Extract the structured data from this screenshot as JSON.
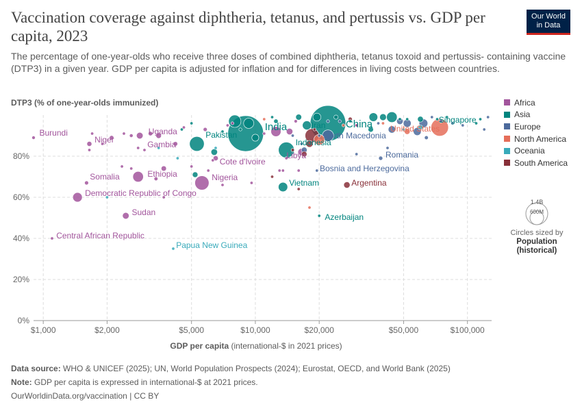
{
  "header": {
    "title": "Vaccination coverage against diphtheria, tetanus, and pertussis vs. GDP per capita, 2023",
    "subtitle": "The percentage of one-year-olds who receive three doses of combined diphtheria, tetanus toxoid and pertussis- containing vaccine (DTP3) in a given year. GDP per capita is adjusted for inflation and for differences in living costs between countries.",
    "logo_line1": "Our World",
    "logo_line2": "in Data"
  },
  "chart_data": {
    "type": "scatter",
    "ylabel": "DTP3 (% of one-year-olds immunized)",
    "xlabel_bold": "GDP per capita",
    "xlabel_rest": " (international-$ in 2021 prices)",
    "x_scale": "log",
    "xlim": [
      900,
      130000
    ],
    "ylim": [
      0,
      100
    ],
    "x_ticks": [
      {
        "v": 1000,
        "label": "$1,000"
      },
      {
        "v": 2000,
        "label": "$2,000"
      },
      {
        "v": 5000,
        "label": "$5,000"
      },
      {
        "v": 10000,
        "label": "$10,000"
      },
      {
        "v": 20000,
        "label": "$20,000"
      },
      {
        "v": 50000,
        "label": "$50,000"
      },
      {
        "v": 100000,
        "label": "$100,000"
      }
    ],
    "y_ticks": [
      {
        "v": 0,
        "label": "0%"
      },
      {
        "v": 20,
        "label": "20%"
      },
      {
        "v": 40,
        "label": "40%"
      },
      {
        "v": 60,
        "label": "60%"
      },
      {
        "v": 80,
        "label": "80%"
      }
    ],
    "grid": true,
    "legend_position": "right",
    "colors": {
      "Africa": "#a2559c",
      "Asia": "#00847e",
      "Europe": "#4c6a9c",
      "North America": "#e56e5a",
      "Oceania": "#38aaba",
      "South America": "#883039"
    },
    "legend": [
      "Africa",
      "Asia",
      "Europe",
      "North America",
      "Oceania",
      "South America"
    ],
    "size_legend": {
      "max_label": "1.4B",
      "mid_label": "600M",
      "note": "Circles sized by",
      "note_bold": "Population (historical)"
    },
    "labeled_points": [
      {
        "name": "Burundi",
        "region": "Africa",
        "x": 900,
        "y": 89,
        "pop": 13
      },
      {
        "name": "Niger",
        "region": "Africa",
        "x": 1650,
        "y": 86,
        "pop": 27
      },
      {
        "name": "Uganda",
        "region": "Africa",
        "x": 2850,
        "y": 90,
        "pop": 48
      },
      {
        "name": "Gambia",
        "region": "Africa",
        "x": 3000,
        "y": 83,
        "pop": 2.7
      },
      {
        "name": "Ethiopia",
        "region": "Africa",
        "x": 2800,
        "y": 70,
        "pop": 126
      },
      {
        "name": "Somalia",
        "region": "Africa",
        "x": 1600,
        "y": 67,
        "pop": 18
      },
      {
        "name": "Democratic Republic of Congo",
        "region": "Africa",
        "x": 1450,
        "y": 60,
        "pop": 102
      },
      {
        "name": "Sudan",
        "region": "Africa",
        "x": 2450,
        "y": 51,
        "pop": 48
      },
      {
        "name": "Central African Republic",
        "region": "Africa",
        "x": 1100,
        "y": 40,
        "pop": 5.7
      },
      {
        "name": "Nigeria",
        "region": "Africa",
        "x": 5600,
        "y": 67,
        "pop": 223
      },
      {
        "name": "Cote d'Ivoire",
        "region": "Africa",
        "x": 6500,
        "y": 79,
        "pop": 29
      },
      {
        "name": "Libya",
        "region": "Africa",
        "x": 14000,
        "y": 79,
        "pop": 7
      },
      {
        "name": "Pakistan",
        "region": "Asia",
        "x": 5300,
        "y": 86,
        "pop": 240
      },
      {
        "name": "India",
        "region": "Asia",
        "x": 9000,
        "y": 91,
        "pop": 1428
      },
      {
        "name": "Indonesia",
        "region": "Asia",
        "x": 14000,
        "y": 83,
        "pop": 278
      },
      {
        "name": "Iran",
        "region": "Asia",
        "x": 17500,
        "y": 95,
        "pop": 89
      },
      {
        "name": "China",
        "region": "Asia",
        "x": 22000,
        "y": 96,
        "pop": 1422
      },
      {
        "name": "Vietnam",
        "region": "Asia",
        "x": 13500,
        "y": 65,
        "pop": 99
      },
      {
        "name": "Azerbaijan",
        "region": "Asia",
        "x": 20000,
        "y": 51,
        "pop": 10
      },
      {
        "name": "Singapore",
        "region": "Asia",
        "x": 110000,
        "y": 96,
        "pop": 5.9
      },
      {
        "name": "North Macedonia",
        "region": "Europe",
        "x": 20000,
        "y": 90,
        "pop": 1.8
      },
      {
        "name": "Romania",
        "region": "Europe",
        "x": 39000,
        "y": 79,
        "pop": 19
      },
      {
        "name": "Bosnia and Herzegovina",
        "region": "Europe",
        "x": 19500,
        "y": 73,
        "pop": 3.2
      },
      {
        "name": "United States",
        "region": "North America",
        "x": 74000,
        "y": 94,
        "pop": 340
      },
      {
        "name": "Papua New Guinea",
        "region": "Oceania",
        "x": 4100,
        "y": 35,
        "pop": 10
      },
      {
        "name": "Argentina",
        "region": "South America",
        "x": 27000,
        "y": 66,
        "pop": 45
      }
    ],
    "unlabeled_points": [
      {
        "region": "Africa",
        "x": 1700,
        "y": 91,
        "pop": 5
      },
      {
        "region": "Africa",
        "x": 1650,
        "y": 83,
        "pop": 9
      },
      {
        "region": "Africa",
        "x": 2100,
        "y": 89,
        "pop": 22
      },
      {
        "region": "Africa",
        "x": 2400,
        "y": 91,
        "pop": 10
      },
      {
        "region": "Africa",
        "x": 2600,
        "y": 90,
        "pop": 14
      },
      {
        "region": "Africa",
        "x": 3200,
        "y": 91,
        "pop": 21
      },
      {
        "region": "Africa",
        "x": 3500,
        "y": 90,
        "pop": 34
      },
      {
        "region": "Africa",
        "x": 4200,
        "y": 86,
        "pop": 23
      },
      {
        "region": "Africa",
        "x": 2350,
        "y": 75,
        "pop": 9
      },
      {
        "region": "Africa",
        "x": 2600,
        "y": 74,
        "pop": 8
      },
      {
        "region": "Africa",
        "x": 3700,
        "y": 74,
        "pop": 30
      },
      {
        "region": "Africa",
        "x": 3400,
        "y": 69,
        "pop": 17
      },
      {
        "region": "Africa",
        "x": 1900,
        "y": 86,
        "pop": 3
      },
      {
        "region": "Africa",
        "x": 2800,
        "y": 84,
        "pop": 4
      },
      {
        "region": "Africa",
        "x": 5000,
        "y": 75,
        "pop": 8
      },
      {
        "region": "Africa",
        "x": 6000,
        "y": 73,
        "pop": 3
      },
      {
        "region": "Africa",
        "x": 6300,
        "y": 78,
        "pop": 6
      },
      {
        "region": "Africa",
        "x": 7000,
        "y": 66,
        "pop": 5
      },
      {
        "region": "Africa",
        "x": 9600,
        "y": 67,
        "pop": 2
      },
      {
        "region": "Africa",
        "x": 7800,
        "y": 96,
        "pop": 2
      },
      {
        "region": "Africa",
        "x": 5800,
        "y": 93,
        "pop": 18
      },
      {
        "region": "Africa",
        "x": 7400,
        "y": 95,
        "pop": 3
      },
      {
        "region": "Africa",
        "x": 4600,
        "y": 94,
        "pop": 1.5
      },
      {
        "region": "Africa",
        "x": 3700,
        "y": 60,
        "pop": 2
      },
      {
        "region": "Africa",
        "x": 11000,
        "y": 91,
        "pop": 4
      },
      {
        "region": "Africa",
        "x": 12500,
        "y": 92,
        "pop": 112
      },
      {
        "region": "Africa",
        "x": 14500,
        "y": 92,
        "pop": 46
      },
      {
        "region": "Africa",
        "x": 15500,
        "y": 97,
        "pop": 12
      },
      {
        "region": "Africa",
        "x": 16500,
        "y": 82,
        "pop": 60
      },
      {
        "region": "Africa",
        "x": 13500,
        "y": 73,
        "pop": 2.5
      },
      {
        "region": "Africa",
        "x": 16000,
        "y": 73,
        "pop": 2.4
      },
      {
        "region": "Africa",
        "x": 13000,
        "y": 73,
        "pop": 1.3
      },
      {
        "region": "Africa",
        "x": 30000,
        "y": 95,
        "pop": 1.3
      },
      {
        "region": "Asia",
        "x": 4500,
        "y": 93,
        "pop": 5
      },
      {
        "region": "Asia",
        "x": 5200,
        "y": 71,
        "pop": 34
      },
      {
        "region": "Asia",
        "x": 5000,
        "y": 96,
        "pop": 7
      },
      {
        "region": "Asia",
        "x": 6400,
        "y": 82,
        "pop": 47
      },
      {
        "region": "Asia",
        "x": 7000,
        "y": 92,
        "pop": 9
      },
      {
        "region": "Asia",
        "x": 8000,
        "y": 97,
        "pop": 173
      },
      {
        "region": "Asia",
        "x": 9300,
        "y": 96,
        "pop": 117
      },
      {
        "region": "Asia",
        "x": 10000,
        "y": 89,
        "pop": 54
      },
      {
        "region": "Asia",
        "x": 12500,
        "y": 97,
        "pop": 22
      },
      {
        "region": "Asia",
        "x": 16000,
        "y": 99,
        "pop": 40
      },
      {
        "region": "Asia",
        "x": 19500,
        "y": 99,
        "pop": 71
      },
      {
        "region": "Asia",
        "x": 12000,
        "y": 99,
        "pop": 3
      },
      {
        "region": "Asia",
        "x": 24000,
        "y": 99,
        "pop": 20
      },
      {
        "region": "Asia",
        "x": 28000,
        "y": 97,
        "pop": 4
      },
      {
        "region": "Asia",
        "x": 35000,
        "y": 93,
        "pop": 33
      },
      {
        "region": "Asia",
        "x": 36000,
        "y": 99,
        "pop": 85
      },
      {
        "region": "Asia",
        "x": 40000,
        "y": 99,
        "pop": 51
      },
      {
        "region": "Asia",
        "x": 44000,
        "y": 99,
        "pop": 124
      },
      {
        "region": "Asia",
        "x": 48000,
        "y": 98,
        "pop": 9
      },
      {
        "region": "Asia",
        "x": 52000,
        "y": 98,
        "pop": 4.3
      },
      {
        "region": "Asia",
        "x": 60000,
        "y": 98,
        "pop": 37
      },
      {
        "region": "Asia",
        "x": 72000,
        "y": 98,
        "pop": 9.5
      },
      {
        "region": "Asia",
        "x": 80000,
        "y": 99,
        "pop": 2.7
      },
      {
        "region": "Asia",
        "x": 115000,
        "y": 98,
        "pop": 2.7
      },
      {
        "region": "Asia",
        "x": 8500,
        "y": 93,
        "pop": 10
      },
      {
        "region": "Europe",
        "x": 15000,
        "y": 90,
        "pop": 2.8
      },
      {
        "region": "Europe",
        "x": 16500,
        "y": 86,
        "pop": 9.5
      },
      {
        "region": "Europe",
        "x": 17000,
        "y": 83,
        "pop": 38
      },
      {
        "region": "Europe",
        "x": 22000,
        "y": 90,
        "pop": 144
      },
      {
        "region": "Europe",
        "x": 25000,
        "y": 97,
        "pop": 10
      },
      {
        "region": "Europe",
        "x": 30000,
        "y": 81,
        "pop": 6.8
      },
      {
        "region": "Europe",
        "x": 38000,
        "y": 96,
        "pop": 9.7
      },
      {
        "region": "Europe",
        "x": 42000,
        "y": 84,
        "pop": 4
      },
      {
        "region": "Europe",
        "x": 44000,
        "y": 93,
        "pop": 59
      },
      {
        "region": "Europe",
        "x": 48000,
        "y": 97,
        "pop": 47
      },
      {
        "region": "Europe",
        "x": 52000,
        "y": 96,
        "pop": 68
      },
      {
        "region": "Europe",
        "x": 58000,
        "y": 92,
        "pop": 68
      },
      {
        "region": "Europe",
        "x": 62000,
        "y": 96,
        "pop": 84
      },
      {
        "region": "Europe",
        "x": 64000,
        "y": 89,
        "pop": 17
      },
      {
        "region": "Europe",
        "x": 68000,
        "y": 99,
        "pop": 5.5
      },
      {
        "region": "Europe",
        "x": 75000,
        "y": 97,
        "pop": 11
      },
      {
        "region": "Europe",
        "x": 85000,
        "y": 96,
        "pop": 8.8
      },
      {
        "region": "Europe",
        "x": 95000,
        "y": 95,
        "pop": 5.4
      },
      {
        "region": "Europe",
        "x": 120000,
        "y": 93,
        "pop": 5
      },
      {
        "region": "Europe",
        "x": 125000,
        "y": 99,
        "pop": 0.7
      },
      {
        "region": "Europe",
        "x": 22000,
        "y": 97,
        "pop": 6
      },
      {
        "region": "North America",
        "x": 11000,
        "y": 98,
        "pop": 1.2
      },
      {
        "region": "North America",
        "x": 20000,
        "y": 88,
        "pop": 128
      },
      {
        "region": "North America",
        "x": 18000,
        "y": 55,
        "pop": 1.5
      },
      {
        "region": "North America",
        "x": 26000,
        "y": 95,
        "pop": 5.2
      },
      {
        "region": "North America",
        "x": 40000,
        "y": 96,
        "pop": 0.3
      },
      {
        "region": "North America",
        "x": 52000,
        "y": 92,
        "pop": 38
      },
      {
        "region": "Oceania",
        "x": 3500,
        "y": 84,
        "pop": 0.7
      },
      {
        "region": "Oceania",
        "x": 4300,
        "y": 79,
        "pop": 0.3
      },
      {
        "region": "Oceania",
        "x": 6500,
        "y": 84,
        "pop": 0.9
      },
      {
        "region": "Oceania",
        "x": 2000,
        "y": 60,
        "pop": 0.1
      },
      {
        "region": "Oceania",
        "x": 50000,
        "y": 93,
        "pop": 5.2
      },
      {
        "region": "Oceania",
        "x": 60000,
        "y": 94,
        "pop": 26
      },
      {
        "region": "South America",
        "x": 15000,
        "y": 83,
        "pop": 12
      },
      {
        "region": "South America",
        "x": 18000,
        "y": 86,
        "pop": 52
      },
      {
        "region": "South America",
        "x": 17000,
        "y": 81,
        "pop": 34
      },
      {
        "region": "South America",
        "x": 18500,
        "y": 90,
        "pop": 216
      },
      {
        "region": "South America",
        "x": 19000,
        "y": 93,
        "pop": 2.6
      },
      {
        "region": "South America",
        "x": 30000,
        "y": 95,
        "pop": 3.4
      },
      {
        "region": "South America",
        "x": 28000,
        "y": 98,
        "pop": 19
      },
      {
        "region": "South America",
        "x": 12000,
        "y": 70,
        "pop": 0.9
      },
      {
        "region": "South America",
        "x": 16000,
        "y": 64,
        "pop": 6.8
      }
    ]
  },
  "footer": {
    "source_label": "Data source:",
    "source_text": " WHO & UNICEF (2025); UN, World Population Prospects (2024); Eurostat, OECD, and World Bank (2025)",
    "note_label": "Note:",
    "note_text": " GDP per capita is expressed in international-$ at 2021 prices.",
    "url": "OurWorldinData.org/vaccination | CC BY"
  }
}
